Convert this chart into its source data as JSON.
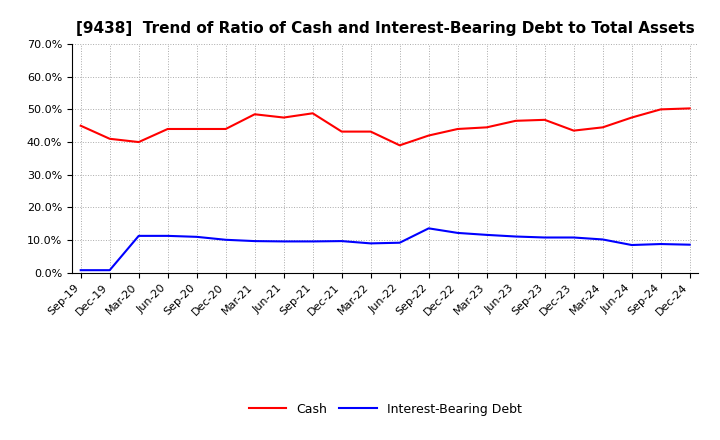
{
  "title": "[9438]  Trend of Ratio of Cash and Interest-Bearing Debt to Total Assets",
  "x_labels": [
    "Sep-19",
    "Dec-19",
    "Mar-20",
    "Jun-20",
    "Sep-20",
    "Dec-20",
    "Mar-21",
    "Jun-21",
    "Sep-21",
    "Dec-21",
    "Mar-22",
    "Jun-22",
    "Sep-22",
    "Dec-22",
    "Mar-23",
    "Jun-23",
    "Sep-23",
    "Dec-23",
    "Mar-24",
    "Jun-24",
    "Sep-24",
    "Dec-24"
  ],
  "cash": [
    0.45,
    0.41,
    0.4,
    0.44,
    0.44,
    0.44,
    0.485,
    0.475,
    0.488,
    0.432,
    0.432,
    0.39,
    0.42,
    0.44,
    0.445,
    0.465,
    0.468,
    0.435,
    0.445,
    0.475,
    0.5,
    0.503
  ],
  "ibd": [
    0.008,
    0.008,
    0.113,
    0.113,
    0.11,
    0.101,
    0.097,
    0.096,
    0.096,
    0.097,
    0.09,
    0.092,
    0.136,
    0.122,
    0.116,
    0.111,
    0.108,
    0.108,
    0.102,
    0.085,
    0.088,
    0.086
  ],
  "cash_color": "#FF0000",
  "ibd_color": "#0000FF",
  "ylim": [
    0.0,
    0.7
  ],
  "yticks": [
    0.0,
    0.1,
    0.2,
    0.3,
    0.4,
    0.5,
    0.6,
    0.7
  ],
  "background_color": "#FFFFFF",
  "grid_color": "#AAAAAA",
  "legend_cash": "Cash",
  "legend_ibd": "Interest-Bearing Debt",
  "title_fontsize": 11,
  "tick_fontsize": 8,
  "legend_fontsize": 9
}
